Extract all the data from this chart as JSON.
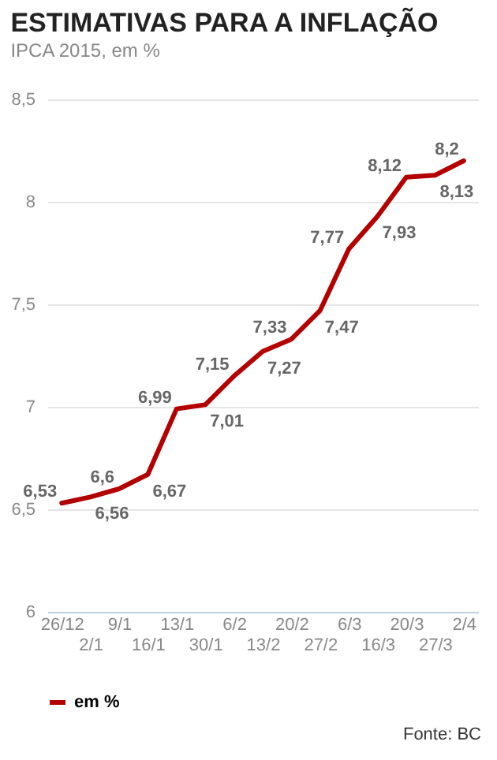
{
  "chart_data": {
    "type": "line",
    "title": "ESTIMATIVAS PARA A INFLAÇÃO",
    "subtitle": "IPCA 2015, em %",
    "categories": [
      "26/12",
      "2/1",
      "9/1",
      "16/1",
      "13/1",
      "30/1",
      "6/2",
      "13/2",
      "20/2",
      "27/2",
      "6/3",
      "16/3",
      "20/3",
      "27/3",
      "2/4"
    ],
    "series": [
      {
        "name": "em %",
        "color": "#b30000",
        "values": [
          6.53,
          6.56,
          6.6,
          6.67,
          6.99,
          7.01,
          7.15,
          7.27,
          7.33,
          7.47,
          7.77,
          7.93,
          8.12,
          8.13,
          8.2
        ],
        "value_labels": [
          "6,53",
          "6,56",
          "6,6",
          "6,67",
          "6,99",
          "7,01",
          "7,15",
          "7,27",
          "7,33",
          "7,47",
          "7,77",
          "7,93",
          "8,12",
          "8,13",
          "8,2"
        ]
      }
    ],
    "ylim": [
      6,
      8.5
    ],
    "yticks": [
      6,
      {
        "value": 6.5,
        "label": "6,5"
      },
      7,
      {
        "value": 7.5,
        "label": "7,5"
      },
      8,
      {
        "value": 8.5,
        "label": "8,5"
      }
    ],
    "grid": "y",
    "legend": "bottom",
    "marker": "none",
    "line_style": "solid",
    "annotations": [
      "Fonte: BC"
    ]
  }
}
